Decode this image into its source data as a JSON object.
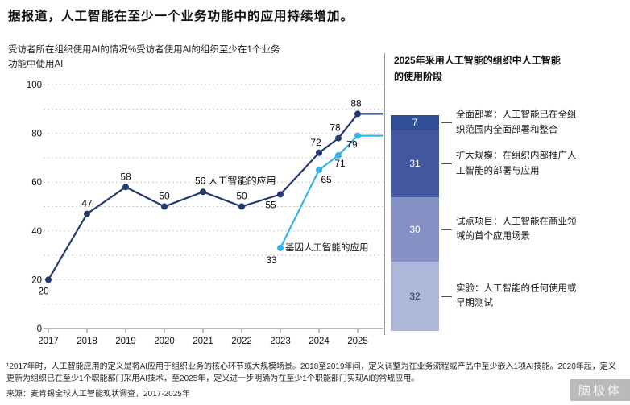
{
  "page": {
    "title": "据报道，人工智能在至少一个业务功能中的应用持续增加。",
    "subtitle_line1": "受访者所在组织使用AI的情况%受访者使用AI的组织至少在1个业务",
    "subtitle_line2": "功能中使用AI",
    "footnote": "¹2017年时，人工智能应用的定义是将AI应用于组织业务的核心环节或大规模场景。2018至2019年间，定义调整为在业务流程或产品中至少嵌入1项AI技能。2020年起，定义更新为组织已在至少1个职能部门采用AI技术，至2025年，定义进一步明确为在至少1个职能部门实现AI的常规应用。",
    "source": "来源：麦肯锡全球人工智能现状调查，2017-2025年",
    "watermark": "脑极体"
  },
  "chart_data": [
    {
      "type": "line",
      "title": "受访者所在组织使用AI的情况%受访者使用AI的组织至少在1个业务功能中使用AI",
      "xlabel": "",
      "ylabel": "%",
      "ylim": [
        0,
        100
      ],
      "y_ticks": [
        0,
        20,
        40,
        60,
        80,
        100
      ],
      "x_ticks": [
        "2017",
        "2018",
        "2019",
        "2020",
        "2021",
        "2022",
        "2023",
        "2024",
        "2025"
      ],
      "grid": "dashed horizontal lines every 10",
      "legend_position": "inline annotations",
      "series": [
        {
          "name": "人工智能的应用",
          "color": "#233a6d",
          "x": [
            2017,
            2018,
            2019,
            2020,
            2021,
            2022,
            2023,
            2024,
            2024.5,
            2025
          ],
          "values": [
            20,
            47,
            58,
            50,
            56,
            50,
            55,
            72,
            78,
            88
          ]
        },
        {
          "name": "基因人工智能的应用",
          "color": "#35b4e5",
          "x": [
            2023,
            2024,
            2024.5,
            2025
          ],
          "values": [
            33,
            65,
            71,
            79
          ]
        }
      ]
    },
    {
      "type": "bar",
      "stacked": true,
      "title": "2025年采用人工智能的组织中人工智能的使用阶段",
      "total": 100,
      "segments": [
        {
          "value": 7,
          "color": "#2f4f96",
          "value_color": "#ffffff",
          "label": "全面部署：人工智能已在全组织范围内全面部署和整合"
        },
        {
          "value": 31,
          "color": "#43569f",
          "value_color": "#ffffff",
          "label": "扩大规模：在组织内部推广人工智能的部署与应用"
        },
        {
          "value": 30,
          "color": "#8590c4",
          "value_color": "#ffffff",
          "label": "试点项目：人工智能在商业领域的首个应用场景"
        },
        {
          "value": 32,
          "color": "#aeb7da",
          "value_color": "#233a6d",
          "label": "实验：人工智能的任何使用或早期测试"
        }
      ]
    }
  ]
}
